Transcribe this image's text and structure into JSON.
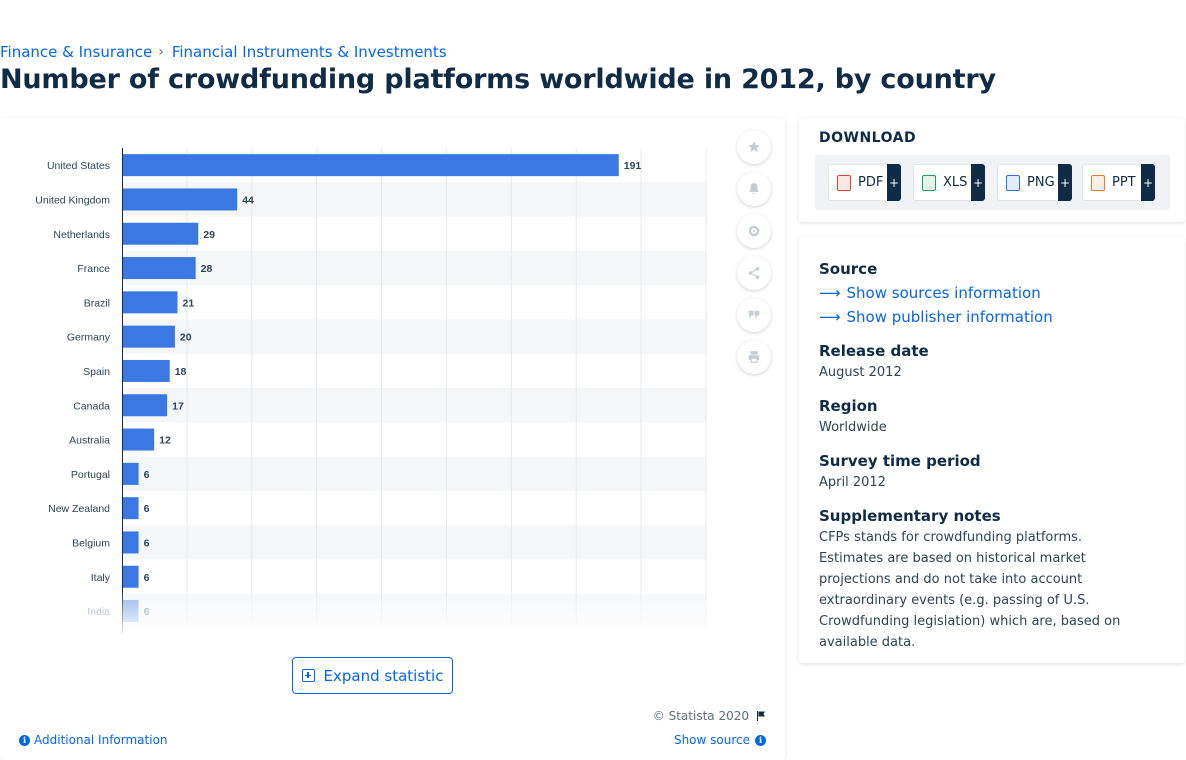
{
  "breadcrumb": {
    "items": [
      "Finance & Insurance",
      "Financial Instruments & Investments"
    ],
    "separator": "›"
  },
  "page_title": "Number of crowdfunding platforms worldwide in 2012, by country",
  "chart_data": {
    "type": "bar",
    "orientation": "horizontal",
    "categories": [
      "United States",
      "United Kingdom",
      "Netherlands",
      "France",
      "Brazil",
      "Germany",
      "Spain",
      "Canada",
      "Australia",
      "Portugal",
      "New Zealand",
      "Belgium",
      "Italy",
      "India"
    ],
    "values": [
      191,
      44,
      29,
      28,
      21,
      20,
      18,
      17,
      12,
      6,
      6,
      6,
      6,
      6
    ],
    "xlim": [
      0,
      225
    ],
    "grid": true,
    "bar_color": "#3b78e1",
    "faded_last_row": true
  },
  "chart_tools": [
    "star-icon",
    "bell-icon",
    "gear-icon",
    "share-icon",
    "quote-icon",
    "print-icon"
  ],
  "expand_label": "Expand statistic",
  "copyright": "© Statista 2020",
  "additional_info": "Additional Information",
  "show_source": "Show source",
  "download": {
    "title": "DOWNLOAD",
    "buttons": [
      {
        "label": "PDF",
        "color": "#e2462f"
      },
      {
        "label": "XLS",
        "color": "#1f9d55"
      },
      {
        "label": "PNG",
        "color": "#2f72d6"
      },
      {
        "label": "PPT",
        "color": "#e9772d"
      }
    ],
    "plus": "+"
  },
  "meta": {
    "source_heading": "Source",
    "show_sources": "Show sources information",
    "show_publisher": "Show publisher information",
    "release_heading": "Release date",
    "release_value": "August 2012",
    "region_heading": "Region",
    "region_value": "Worldwide",
    "survey_heading": "Survey time period",
    "survey_value": "April 2012",
    "notes_heading": "Supplementary notes",
    "notes_line1": "CFPs stands for crowdfunding platforms.",
    "notes_line2": "Estimates are based on historical market projections and do not take into account extraordinary events (e.g. passing of U.S. Crowdfunding legislation) which are, based on available data."
  }
}
